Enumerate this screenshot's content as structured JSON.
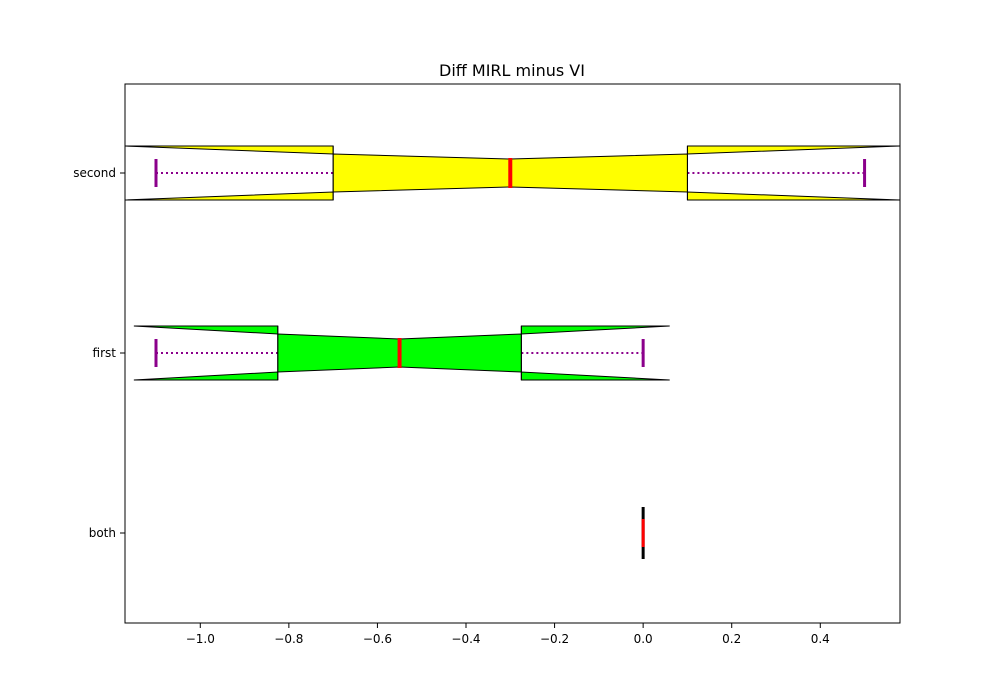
{
  "chart_data": {
    "type": "boxplot",
    "orientation": "horizontal",
    "notched": true,
    "title": "Diff MIRL minus VI",
    "xlabel": "",
    "ylabel": "",
    "xlim": [
      -1.17,
      0.58
    ],
    "x_ticks": [
      -1.0,
      -0.8,
      -0.6,
      -0.4,
      -0.2,
      0.0,
      0.2,
      0.4
    ],
    "x_tick_labels": [
      "−1.0",
      "−0.8",
      "−0.6",
      "−0.4",
      "−0.2",
      "0.0",
      "0.2",
      "0.4"
    ],
    "categories": [
      "both",
      "first",
      "second"
    ],
    "grid": false,
    "boxes": [
      {
        "category": "both",
        "whisker_low": 0.0,
        "q1": 0.0,
        "median": 0.0,
        "q3": 0.0,
        "whisker_high": 0.0,
        "notch_low": 0.0,
        "notch_high": 0.0,
        "fill": "#ffffff"
      },
      {
        "category": "first",
        "whisker_low": -1.1,
        "q1": -0.825,
        "median": -0.55,
        "q3": -0.275,
        "whisker_high": 0.0,
        "notch_low": -1.15,
        "notch_high": 0.06,
        "fill": "#00ff00"
      },
      {
        "category": "second",
        "whisker_low": -1.1,
        "q1": -0.7,
        "median": -0.3,
        "q3": 0.1,
        "whisker_high": 0.5,
        "notch_low": -1.17,
        "notch_high": 0.58,
        "fill": "#ffff00"
      }
    ],
    "colors": {
      "median": "#ff0000",
      "whisker": "#8b008b",
      "edge": "#000000"
    }
  }
}
